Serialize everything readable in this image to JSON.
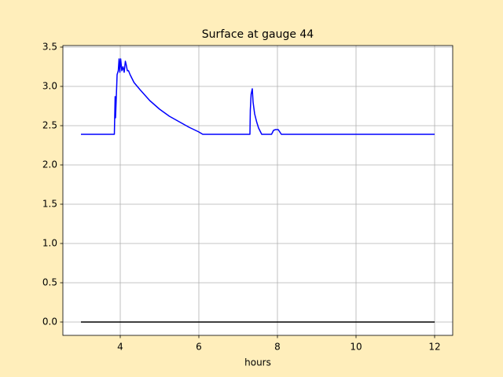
{
  "chart_data": {
    "type": "line",
    "title": "Surface at gauge 44",
    "xlabel": "hours",
    "xlim": [
      2.54,
      12.46
    ],
    "ylim": [
      -0.17,
      3.52
    ],
    "xticks": [
      4,
      6,
      8,
      10,
      12
    ],
    "yticks": [
      {
        "value": 0,
        "label": "0.0"
      },
      0.5,
      {
        "value": 1,
        "label": "1.0"
      },
      1.5,
      {
        "value": 2,
        "label": "2.0"
      },
      2.5,
      {
        "value": 3,
        "label": "3.0"
      },
      3.5
    ],
    "grid": true,
    "series": [
      {
        "color": "#0000ff",
        "x": [
          3,
          3.85,
          3.87,
          3.88,
          3.9,
          3.92,
          3.95,
          3.97,
          3.99,
          4.01,
          4.04,
          4.07,
          4.1,
          4.13,
          4.15,
          4.18,
          4.21,
          4.25,
          4.35,
          4.5,
          4.75,
          5.0,
          5.25,
          5.5,
          5.75,
          6.0,
          6.1,
          7.3,
          7.31,
          7.33,
          7.36,
          7.38,
          7.42,
          7.47,
          7.52,
          7.6,
          7.85,
          7.9,
          7.95,
          8.02,
          8.1,
          12
        ],
        "values": [
          2.39,
          2.39,
          2.87,
          2.6,
          2.87,
          3.15,
          3.2,
          3.35,
          3.18,
          3.35,
          3.2,
          3.25,
          3.18,
          3.32,
          3.28,
          3.2,
          3.2,
          3.15,
          3.05,
          2.96,
          2.82,
          2.71,
          2.62,
          2.55,
          2.48,
          2.42,
          2.39,
          2.39,
          2.7,
          2.9,
          2.97,
          2.8,
          2.65,
          2.55,
          2.47,
          2.39,
          2.39,
          2.44,
          2.45,
          2.45,
          2.39,
          2.39
        ]
      },
      {
        "color": "#000000",
        "x": [
          3,
          12
        ],
        "values": [
          0,
          0
        ]
      }
    ]
  }
}
